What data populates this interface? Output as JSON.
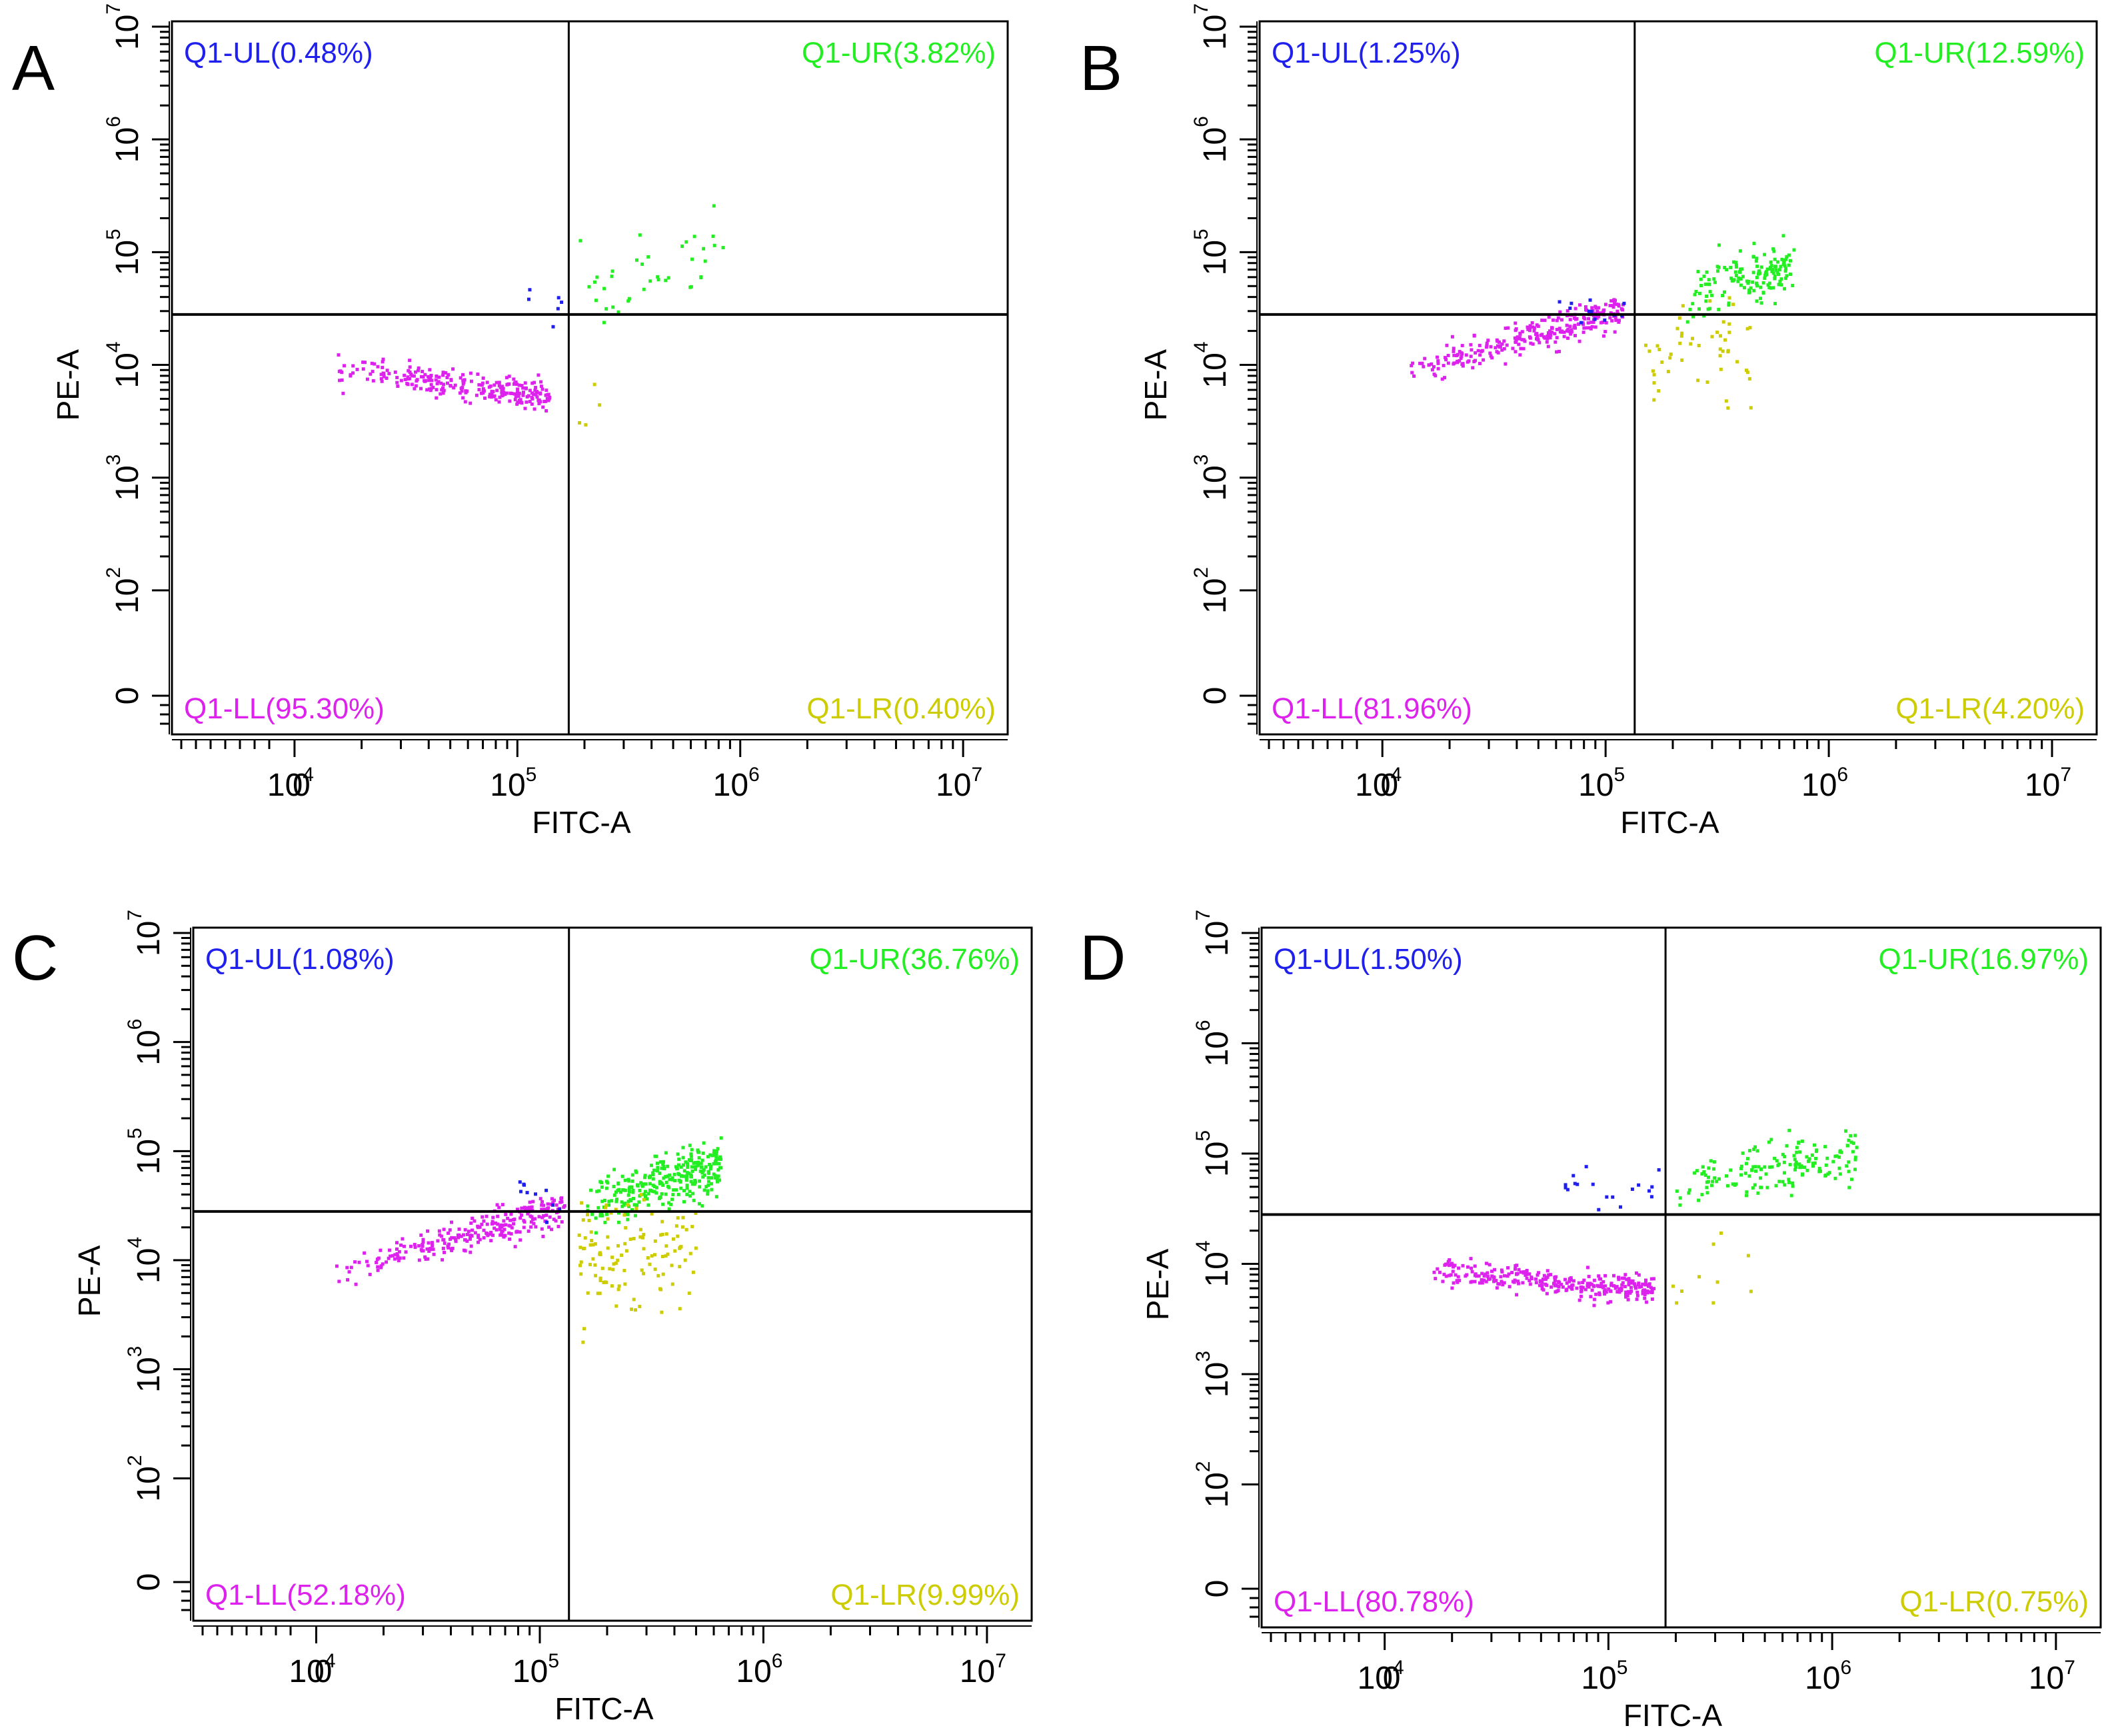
{
  "figure": {
    "colors": {
      "UL": "#2020ee",
      "UR": "#22ee22",
      "LL": "#dd22ee",
      "LR": "#cccc00",
      "axis": "#000000"
    }
  },
  "chart_data": [
    {
      "type": "scatter",
      "panel": "A",
      "xlabel": "FITC-A",
      "ylabel": "PE-A",
      "x_tick_labels": [
        "0",
        "10",
        "10",
        "10",
        "10"
      ],
      "x_tick_exponents": [
        "",
        "4",
        "5",
        "6",
        "7"
      ],
      "y_tick_labels": [
        "0",
        "10",
        "10",
        "10",
        "10",
        "10",
        "10"
      ],
      "y_tick_exponents": [
        "",
        "2",
        "3",
        "4",
        "5",
        "6",
        "7"
      ],
      "gate": {
        "x": 170000,
        "y": 28000
      },
      "quadrants": {
        "UL": {
          "label": "Q1-UL(",
          "value": "0.48%",
          "close": ")"
        },
        "UR": {
          "label": "Q1-UR(",
          "value": "3.82%",
          "close": ")"
        },
        "LL": {
          "label": "Q1-LL(",
          "value": "95.30%",
          "close": ")"
        },
        "LR": {
          "label": "Q1-LR(",
          "value": "0.40%",
          "close": ")"
        }
      },
      "clusters": [
        {
          "q": "LL",
          "n": 260,
          "x_range": [
            15000,
            140000
          ],
          "y_center": 7000,
          "y_spread": 0.06,
          "slope": -0.25
        },
        {
          "q": "UR",
          "n": 38,
          "x_range": [
            190000,
            900000
          ],
          "y_center": 60000,
          "y_spread": 0.18,
          "slope": 0.5
        },
        {
          "q": "UL",
          "n": 6,
          "x_range": [
            100000,
            160000
          ],
          "y_center": 38000,
          "y_spread": 0.1,
          "slope": 0
        },
        {
          "q": "LR",
          "n": 4,
          "x_range": [
            180000,
            260000
          ],
          "y_center": 4000,
          "y_spread": 0.15,
          "slope": 0
        }
      ]
    },
    {
      "type": "scatter",
      "panel": "B",
      "xlabel": "FITC-A",
      "ylabel": "PE-A",
      "x_tick_labels": [
        "0",
        "10",
        "10",
        "10",
        "10"
      ],
      "x_tick_exponents": [
        "",
        "4",
        "5",
        "6",
        "7"
      ],
      "y_tick_labels": [
        "0",
        "10",
        "10",
        "10",
        "10",
        "10",
        "10"
      ],
      "y_tick_exponents": [
        "",
        "2",
        "3",
        "4",
        "5",
        "6",
        "7"
      ],
      "gate": {
        "x": 135000,
        "y": 28000
      },
      "quadrants": {
        "UL": {
          "label": "Q1-UL(",
          "value": "1.25%",
          "close": ")"
        },
        "UR": {
          "label": "Q1-UR(",
          "value": "12.59%",
          "close": ")"
        },
        "LL": {
          "label": "Q1-LL(",
          "value": "81.96%",
          "close": ")"
        },
        "LR": {
          "label": "Q1-LR(",
          "value": "4.20%",
          "close": ")"
        }
      },
      "clusters": [
        {
          "q": "LL",
          "n": 280,
          "x_range": [
            13000,
            120000
          ],
          "y_center": 16000,
          "y_spread": 0.07,
          "slope": 0.6
        },
        {
          "q": "UR",
          "n": 150,
          "x_range": [
            230000,
            700000
          ],
          "y_center": 55000,
          "y_spread": 0.12,
          "slope": 0.6
        },
        {
          "q": "UL",
          "n": 12,
          "x_range": [
            60000,
            130000
          ],
          "y_center": 34000,
          "y_spread": 0.08,
          "slope": 0
        },
        {
          "q": "LR",
          "n": 50,
          "x_range": [
            150000,
            450000
          ],
          "y_center": 12000,
          "y_spread": 0.22,
          "slope": 0
        }
      ]
    },
    {
      "type": "scatter",
      "panel": "C",
      "xlabel": "FITC-A",
      "ylabel": "PE-A",
      "x_tick_labels": [
        "0",
        "10",
        "10",
        "10",
        "10"
      ],
      "x_tick_exponents": [
        "",
        "4",
        "5",
        "6",
        "7"
      ],
      "y_tick_labels": [
        "0",
        "10",
        "10",
        "10",
        "10",
        "10",
        "10"
      ],
      "y_tick_exponents": [
        "",
        "2",
        "3",
        "4",
        "5",
        "6",
        "7"
      ],
      "gate": {
        "x": 135000,
        "y": 28000
      },
      "quadrants": {
        "UL": {
          "label": "Q1-UL(",
          "value": "1.08%",
          "close": ")"
        },
        "UR": {
          "label": "Q1-UR(",
          "value": "36.76%",
          "close": ")"
        },
        "LL": {
          "label": "Q1-LL(",
          "value": "52.18%",
          "close": ")"
        },
        "LR": {
          "label": "Q1-LR(",
          "value": "9.99%",
          "close": ")"
        }
      },
      "clusters": [
        {
          "q": "LL",
          "n": 260,
          "x_range": [
            12000,
            130000
          ],
          "y_center": 15000,
          "y_spread": 0.08,
          "slope": 0.6
        },
        {
          "q": "UR",
          "n": 300,
          "x_range": [
            160000,
            650000
          ],
          "y_center": 48000,
          "y_spread": 0.12,
          "slope": 0.6
        },
        {
          "q": "UL",
          "n": 10,
          "x_range": [
            70000,
            130000
          ],
          "y_center": 36000,
          "y_spread": 0.08,
          "slope": 0
        },
        {
          "q": "LR",
          "n": 120,
          "x_range": [
            150000,
            500000
          ],
          "y_center": 12000,
          "y_spread": 0.25,
          "slope": 0
        }
      ]
    },
    {
      "type": "scatter",
      "panel": "D",
      "xlabel": "FITC-A",
      "ylabel": "PE-A",
      "x_tick_labels": [
        "0",
        "10",
        "10",
        "10",
        "10"
      ],
      "x_tick_exponents": [
        "",
        "4",
        "5",
        "6",
        "7"
      ],
      "y_tick_labels": [
        "0",
        "10",
        "10",
        "10",
        "10",
        "10",
        "10"
      ],
      "y_tick_exponents": [
        "",
        "2",
        "3",
        "4",
        "5",
        "6",
        "7"
      ],
      "gate": {
        "x": 180000,
        "y": 28000
      },
      "quadrants": {
        "UL": {
          "label": "Q1-UL(",
          "value": "1.50%",
          "close": ")"
        },
        "UR": {
          "label": "Q1-UR(",
          "value": "16.97%",
          "close": ")"
        },
        "LL": {
          "label": "Q1-LL(",
          "value": "80.78%",
          "close": ")"
        },
        "LR": {
          "label": "Q1-LR(",
          "value": "0.75%",
          "close": ")"
        }
      },
      "clusters": [
        {
          "q": "LL",
          "n": 300,
          "x_range": [
            16000,
            160000
          ],
          "y_center": 7000,
          "y_spread": 0.06,
          "slope": -0.2
        },
        {
          "q": "UR",
          "n": 160,
          "x_range": [
            200000,
            1300000
          ],
          "y_center": 70000,
          "y_spread": 0.13,
          "slope": 0.4
        },
        {
          "q": "UL",
          "n": 18,
          "x_range": [
            60000,
            170000
          ],
          "y_center": 50000,
          "y_spread": 0.12,
          "slope": 0
        },
        {
          "q": "LR",
          "n": 10,
          "x_range": [
            190000,
            500000
          ],
          "y_center": 7000,
          "y_spread": 0.2,
          "slope": 0
        }
      ]
    }
  ]
}
